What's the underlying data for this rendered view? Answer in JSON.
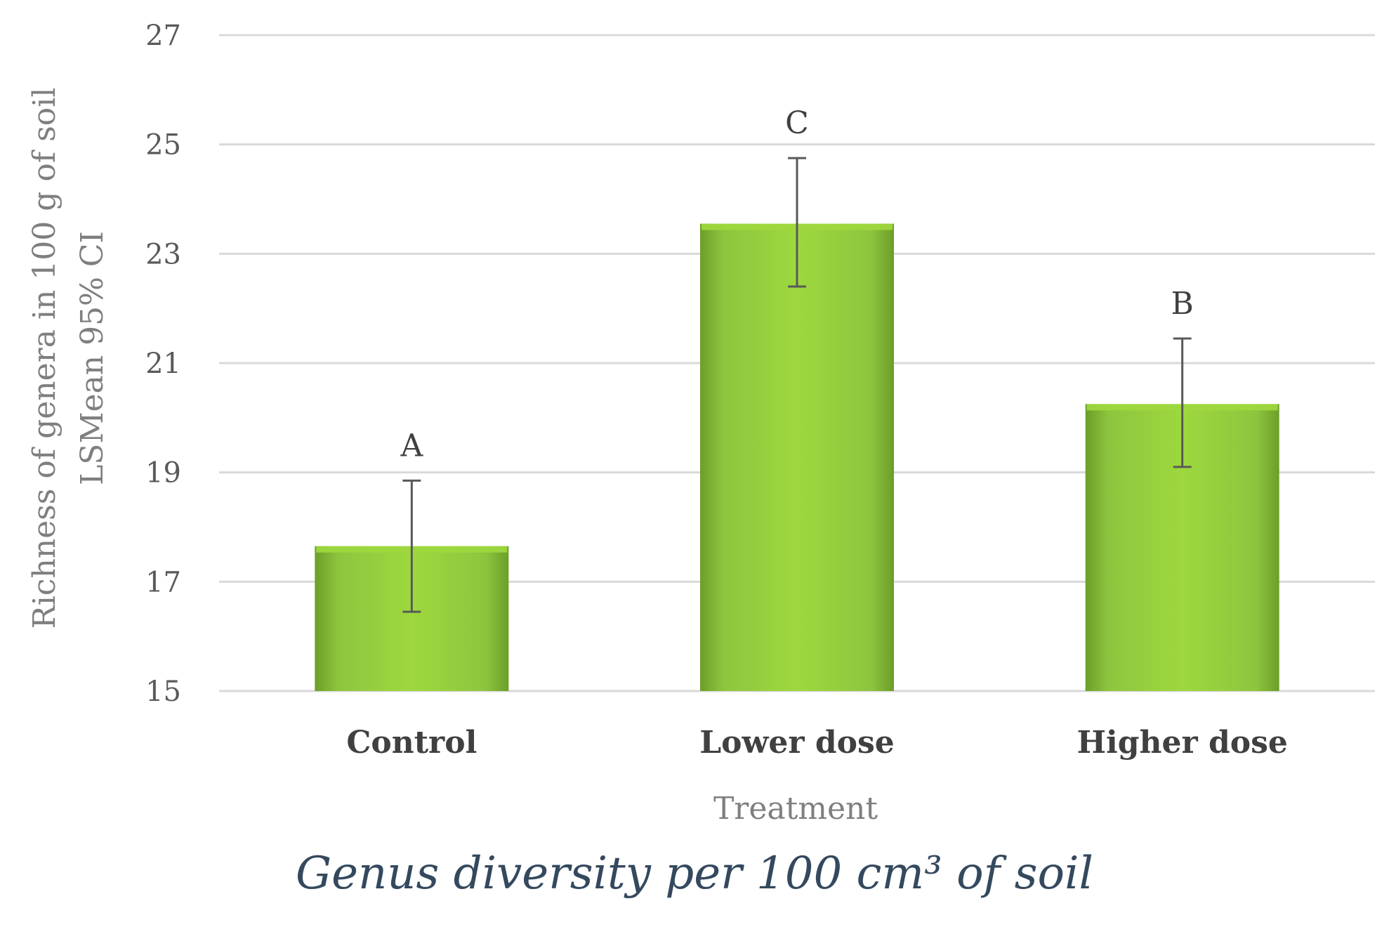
{
  "chart_data": {
    "type": "bar",
    "categories": [
      "Control",
      "Lower dose",
      "Higher dose"
    ],
    "series": [
      {
        "values": [
          17.65,
          23.55,
          20.25
        ],
        "ci_lower": [
          16.45,
          22.4,
          19.1
        ],
        "ci_upper": [
          18.85,
          24.75,
          21.45
        ],
        "significance_letters": [
          "A",
          "C",
          "B"
        ]
      }
    ],
    "ylim": [
      15,
      27
    ],
    "yticks": [
      15,
      17,
      19,
      21,
      23,
      25,
      27
    ],
    "ylabel_line1": "Richness of genera in 100 g of soil",
    "ylabel_line2": "LSMean 95% CI",
    "xlabel": "Treatment",
    "grid": true,
    "legend": "none",
    "caption": "Genus diversity per 100 cm³ of soil",
    "colors": {
      "bar_light": "#9ed83e",
      "bar_mid": "#8cc63f",
      "bar_dark": "#6c9e28",
      "gridline": "#d9d9d9",
      "error_bar": "#595959",
      "caption": "#34495e"
    }
  }
}
